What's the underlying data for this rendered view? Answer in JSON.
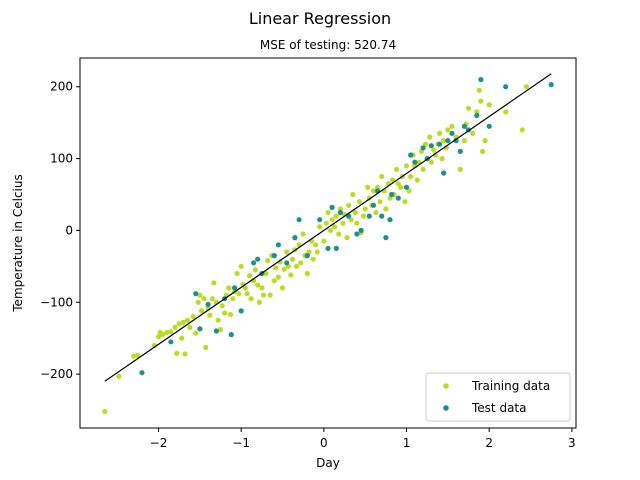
{
  "chart_data": {
    "type": "scatter",
    "title": "Linear Regression",
    "subtitle": "MSE of testing: 520.74",
    "xlabel": "Day",
    "ylabel": "Temperature in Celcius",
    "xlim": [
      -2.95,
      3.05
    ],
    "ylim": [
      -275,
      240
    ],
    "xticks": [
      -2,
      -1,
      0,
      1,
      2,
      3
    ],
    "yticks": [
      -200,
      -100,
      0,
      100,
      200
    ],
    "grid": false,
    "legend_position": "bottom-right",
    "series": [
      {
        "name": "Training data",
        "color": "#bcdb23",
        "points": [
          [
            -2.65,
            -252
          ],
          [
            -2.48,
            -203
          ],
          [
            -2.3,
            -175
          ],
          [
            -2.25,
            -174
          ],
          [
            -2.05,
            -160
          ],
          [
            -2.0,
            -148
          ],
          [
            -1.98,
            -142
          ],
          [
            -1.95,
            -145
          ],
          [
            -1.9,
            -142
          ],
          [
            -1.85,
            -141
          ],
          [
            -1.8,
            -135
          ],
          [
            -1.78,
            -171
          ],
          [
            -1.75,
            -130
          ],
          [
            -1.72,
            -150
          ],
          [
            -1.7,
            -128
          ],
          [
            -1.68,
            -172
          ],
          [
            -1.65,
            -125
          ],
          [
            -1.62,
            -135
          ],
          [
            -1.58,
            -120
          ],
          [
            -1.55,
            -143
          ],
          [
            -1.52,
            -100
          ],
          [
            -1.5,
            -90
          ],
          [
            -1.48,
            -112
          ],
          [
            -1.45,
            -95
          ],
          [
            -1.43,
            -163
          ],
          [
            -1.4,
            -108
          ],
          [
            -1.38,
            -118
          ],
          [
            -1.35,
            -95
          ],
          [
            -1.33,
            -73
          ],
          [
            -1.3,
            -100
          ],
          [
            -1.28,
            -125
          ],
          [
            -1.25,
            -138
          ],
          [
            -1.23,
            -105
          ],
          [
            -1.2,
            -115
          ],
          [
            -1.18,
            -90
          ],
          [
            -1.15,
            -80
          ],
          [
            -1.13,
            -117
          ],
          [
            -1.1,
            -95
          ],
          [
            -1.08,
            -85
          ],
          [
            -1.05,
            -60
          ],
          [
            -1.03,
            -88
          ],
          [
            -1.0,
            -50
          ],
          [
            -0.98,
            -75
          ],
          [
            -0.95,
            -80
          ],
          [
            -0.93,
            -88
          ],
          [
            -0.9,
            -63
          ],
          [
            -0.88,
            -95
          ],
          [
            -0.85,
            -70
          ],
          [
            -0.83,
            -55
          ],
          [
            -0.8,
            -76
          ],
          [
            -0.78,
            -100
          ],
          [
            -0.75,
            -80
          ],
          [
            -0.73,
            -90
          ],
          [
            -0.7,
            -60
          ],
          [
            -0.68,
            -42
          ],
          [
            -0.65,
            -90
          ],
          [
            -0.63,
            -35
          ],
          [
            -0.6,
            -70
          ],
          [
            -0.58,
            -52
          ],
          [
            -0.55,
            -65
          ],
          [
            -0.53,
            -44
          ],
          [
            -0.5,
            -80
          ],
          [
            -0.48,
            -54
          ],
          [
            -0.45,
            -30
          ],
          [
            -0.43,
            -50
          ],
          [
            -0.4,
            -62
          ],
          [
            -0.38,
            -40
          ],
          [
            -0.35,
            -27
          ],
          [
            -0.33,
            -50
          ],
          [
            -0.3,
            -20
          ],
          [
            -0.28,
            -45
          ],
          [
            -0.25,
            -5
          ],
          [
            -0.23,
            -35
          ],
          [
            -0.2,
            -60
          ],
          [
            -0.18,
            -30
          ],
          [
            -0.15,
            -15
          ],
          [
            -0.13,
            -40
          ],
          [
            -0.1,
            -20
          ],
          [
            -0.08,
            -30
          ],
          [
            -0.05,
            5
          ],
          [
            0.0,
            -15
          ],
          [
            0.03,
            10
          ],
          [
            0.05,
            25
          ],
          [
            0.08,
            0
          ],
          [
            0.1,
            15
          ],
          [
            0.13,
            5
          ],
          [
            0.15,
            20
          ],
          [
            0.18,
            -5
          ],
          [
            0.2,
            30
          ],
          [
            0.23,
            10
          ],
          [
            0.25,
            22
          ],
          [
            0.28,
            -10
          ],
          [
            0.3,
            35
          ],
          [
            0.33,
            15
          ],
          [
            0.35,
            50
          ],
          [
            0.38,
            25
          ],
          [
            0.4,
            10
          ],
          [
            0.43,
            40
          ],
          [
            0.45,
            -3
          ],
          [
            0.48,
            20
          ],
          [
            0.5,
            30
          ],
          [
            0.53,
            60
          ],
          [
            0.55,
            45
          ],
          [
            0.58,
            35
          ],
          [
            0.6,
            55
          ],
          [
            0.63,
            25
          ],
          [
            0.65,
            60
          ],
          [
            0.68,
            40
          ],
          [
            0.7,
            75
          ],
          [
            0.73,
            55
          ],
          [
            0.75,
            30
          ],
          [
            0.78,
            65
          ],
          [
            0.8,
            45
          ],
          [
            0.83,
            70
          ],
          [
            0.85,
            50
          ],
          [
            0.88,
            85
          ],
          [
            0.9,
            65
          ],
          [
            0.93,
            60
          ],
          [
            0.95,
            75
          ],
          [
            0.98,
            40
          ],
          [
            1.0,
            90
          ],
          [
            1.03,
            55
          ],
          [
            1.05,
            75
          ],
          [
            1.08,
            105
          ],
          [
            1.1,
            90
          ],
          [
            1.13,
            70
          ],
          [
            1.15,
            95
          ],
          [
            1.18,
            110
          ],
          [
            1.2,
            85
          ],
          [
            1.23,
            120
          ],
          [
            1.25,
            100
          ],
          [
            1.28,
            130
          ],
          [
            1.3,
            95
          ],
          [
            1.33,
            112
          ],
          [
            1.35,
            105
          ],
          [
            1.38,
            120
          ],
          [
            1.4,
            135
          ],
          [
            1.43,
            100
          ],
          [
            1.45,
            125
          ],
          [
            1.48,
            115
          ],
          [
            1.5,
            140
          ],
          [
            1.55,
            145
          ],
          [
            1.6,
            130
          ],
          [
            1.65,
            85
          ],
          [
            1.7,
            125
          ],
          [
            1.72,
            148
          ],
          [
            1.75,
            170
          ],
          [
            1.8,
            135
          ],
          [
            1.85,
            165
          ],
          [
            1.88,
            195
          ],
          [
            1.9,
            180
          ],
          [
            1.92,
            110
          ],
          [
            1.95,
            125
          ],
          [
            2.0,
            175
          ],
          [
            2.2,
            165
          ],
          [
            2.4,
            140
          ],
          [
            2.45,
            200
          ]
        ]
      },
      {
        "name": "Test data",
        "color": "#1f8f8c",
        "points": [
          [
            -2.2,
            -198
          ],
          [
            -1.85,
            -155
          ],
          [
            -1.55,
            -88
          ],
          [
            -1.5,
            -137
          ],
          [
            -1.4,
            -103
          ],
          [
            -1.3,
            -140
          ],
          [
            -1.2,
            -95
          ],
          [
            -1.12,
            -145
          ],
          [
            -1.08,
            -80
          ],
          [
            -1.0,
            -112
          ],
          [
            -0.85,
            -45
          ],
          [
            -0.8,
            -40
          ],
          [
            -0.75,
            -60
          ],
          [
            -0.6,
            -35
          ],
          [
            -0.55,
            -20
          ],
          [
            -0.45,
            -45
          ],
          [
            -0.35,
            -10
          ],
          [
            -0.3,
            15
          ],
          [
            -0.2,
            -35
          ],
          [
            -0.05,
            15
          ],
          [
            0.05,
            -25
          ],
          [
            0.1,
            32
          ],
          [
            0.15,
            -25
          ],
          [
            0.2,
            25
          ],
          [
            0.3,
            20
          ],
          [
            0.4,
            -5
          ],
          [
            0.45,
            0
          ],
          [
            0.55,
            20
          ],
          [
            0.6,
            35
          ],
          [
            0.65,
            55
          ],
          [
            0.7,
            20
          ],
          [
            0.75,
            -10
          ],
          [
            0.8,
            15
          ],
          [
            0.82,
            50
          ],
          [
            0.9,
            45
          ],
          [
            1.0,
            60
          ],
          [
            1.05,
            105
          ],
          [
            1.1,
            95
          ],
          [
            1.2,
            115
          ],
          [
            1.25,
            100
          ],
          [
            1.3,
            118
          ],
          [
            1.4,
            120
          ],
          [
            1.45,
            80
          ],
          [
            1.5,
            125
          ],
          [
            1.55,
            135
          ],
          [
            1.6,
            125
          ],
          [
            1.65,
            110
          ],
          [
            1.7,
            145
          ],
          [
            1.75,
            140
          ],
          [
            1.85,
            160
          ],
          [
            1.9,
            210
          ],
          [
            2.0,
            145
          ],
          [
            2.2,
            200
          ],
          [
            2.75,
            203
          ]
        ]
      }
    ],
    "regression_line": {
      "color": "#000000",
      "x": [
        -2.65,
        2.75
      ],
      "y": [
        -210,
        218
      ]
    }
  }
}
